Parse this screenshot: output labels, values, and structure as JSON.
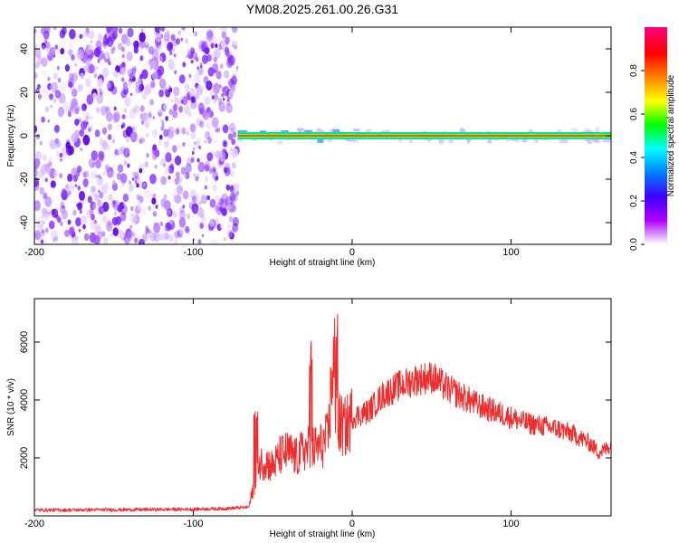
{
  "title": "YM08.2025.261.00.26.G31",
  "chart_data": [
    {
      "type": "heatmap",
      "name": "spectrogram",
      "xlabel": "Height of straight line (km)",
      "ylabel": "Frequency (Hz)",
      "xlim": [
        -200,
        163
      ],
      "ylim": [
        -50,
        50
      ],
      "xticks": [
        -200,
        -100,
        0,
        100
      ],
      "yticks": [
        -40,
        -20,
        0,
        20,
        40
      ],
      "noise_region_x": [
        -200,
        -72
      ],
      "signal_band_x": [
        -72,
        163
      ],
      "signal_frequency_hz": 0,
      "colorbar": {
        "label": "Normalized spectral amplitude",
        "range": [
          0,
          1
        ],
        "ticks": [
          "0.0",
          "0.2",
          "0.4",
          "0.6",
          "0.8"
        ],
        "stops": [
          "#ffffff",
          "#b000ff",
          "#3c00ff",
          "#0080ff",
          "#00ffff",
          "#00ff00",
          "#ffff00",
          "#ff8000",
          "#ff0000",
          "#ff0080"
        ]
      }
    },
    {
      "type": "line",
      "name": "snr",
      "xlabel": "Height of straight line (km)",
      "ylabel": "SNR (10 * v/v)",
      "xlim": [
        -200,
        163
      ],
      "ylim": [
        0,
        7500
      ],
      "xticks": [
        -200,
        -100,
        0,
        100
      ],
      "yticks": [
        2000,
        4000,
        6000
      ],
      "color": "#ee2e2e",
      "x": [
        -200,
        -180,
        -160,
        -140,
        -120,
        -100,
        -80,
        -65,
        -62,
        -60,
        -58,
        -55,
        -50,
        -45,
        -40,
        -35,
        -30,
        -25,
        -20,
        -15,
        -12,
        -10,
        -8,
        -5,
        0,
        10,
        20,
        30,
        40,
        50,
        55,
        60,
        70,
        80,
        90,
        100,
        110,
        120,
        130,
        140,
        150,
        155,
        160,
        163
      ],
      "y": [
        200,
        200,
        210,
        210,
        220,
        230,
        250,
        300,
        1000,
        1500,
        1800,
        1900,
        1700,
        2100,
        2200,
        2000,
        2300,
        2300,
        2400,
        2700,
        5500,
        3000,
        3200,
        3000,
        3400,
        3600,
        4200,
        4500,
        4700,
        4800,
        4600,
        4400,
        4100,
        3800,
        3600,
        3400,
        3200,
        3100,
        3000,
        2800,
        2500,
        2200,
        2300,
        2500
      ]
    }
  ]
}
